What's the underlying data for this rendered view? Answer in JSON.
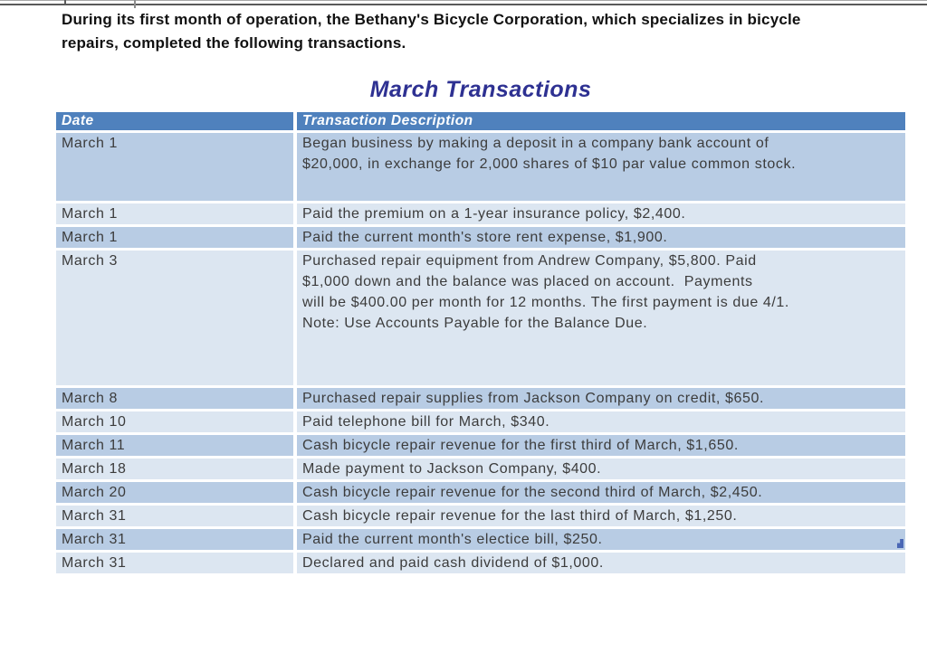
{
  "intro": {
    "line1": "During its first month of operation, the Bethany's Bicycle Corporation, which specializes in bicycle",
    "line2": "repairs, completed the following transactions."
  },
  "title": "March Transactions",
  "table": {
    "header": {
      "date": "Date",
      "description": "Transaction Description"
    },
    "rows": [
      {
        "date": "March 1",
        "description_lines": [
          "Began business by making a deposit in a company bank account of",
          "$20,000, in exchange for 2,000 shares of $10 par value common stock."
        ]
      },
      {
        "date": "March 1",
        "description_lines": [
          "Paid the premium on a 1-year insurance policy, $2,400."
        ]
      },
      {
        "date": "March 1",
        "description_lines": [
          "Paid the current month's store rent expense, $1,900."
        ]
      },
      {
        "date": "March 3",
        "description_lines": [
          "Purchased repair equipment from Andrew Company, $5,800. Paid",
          "$1,000 down and the balance was placed on account.  Payments",
          "will be $400.00 per month for 12 months. The first payment is due 4/1.",
          "Note: Use Accounts Payable for the Balance Due."
        ]
      },
      {
        "date": "March 8",
        "description_lines": [
          "Purchased repair supplies from Jackson Company on credit, $650."
        ]
      },
      {
        "date": "March 10",
        "description_lines": [
          "Paid telephone bill for March, $340."
        ]
      },
      {
        "date": "March 11",
        "description_lines": [
          "Cash bicycle repair revenue for the first third of March, $1,650."
        ]
      },
      {
        "date": "March 18",
        "description_lines": [
          "Made payment to Jackson Company, $400."
        ]
      },
      {
        "date": "March 20",
        "description_lines": [
          "Cash bicycle repair revenue for the second third of March, $2,450."
        ]
      },
      {
        "date": "March 31",
        "description_lines": [
          "Cash bicycle repair revenue for the last third of March, $1,250."
        ]
      },
      {
        "date": "March 31",
        "description_lines": [
          "Paid the current month's electice bill, $250."
        ],
        "has_marker": true
      },
      {
        "date": "March 31",
        "description_lines": [
          "Declared and paid cash dividend of $1,000."
        ]
      }
    ]
  },
  "colors": {
    "header_bg": "#4f81bd",
    "band_dark": "#b8cce4",
    "band_light": "#dce6f1",
    "title_text": "#2e3192",
    "header_text": "#ffffff",
    "body_text": "#3c3c3c",
    "marker": "#4a67b5"
  }
}
